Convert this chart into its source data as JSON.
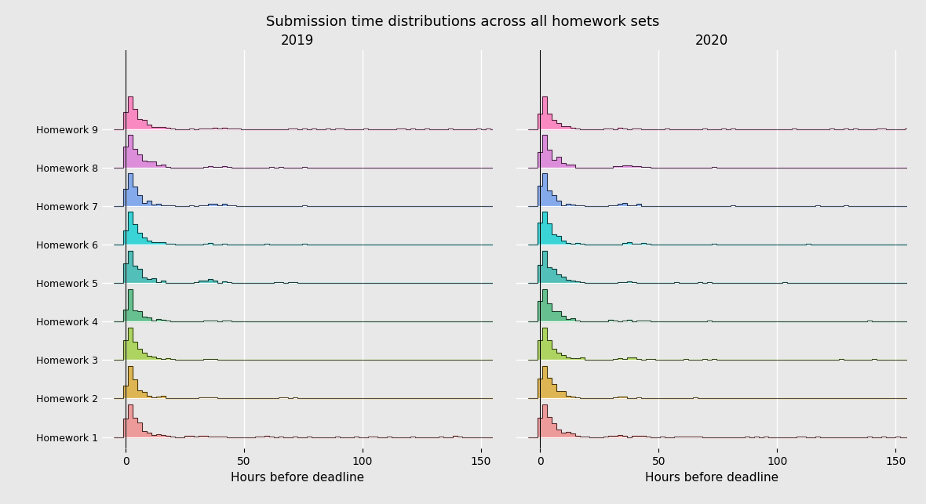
{
  "title": "Submission time distributions across all homework sets",
  "year_2019": "2019",
  "year_2020": "2020",
  "xlabel": "Hours before deadline",
  "xlim": [
    -10,
    155
  ],
  "homeworks": [
    "Homework 1",
    "Homework 2",
    "Homework 3",
    "Homework 4",
    "Homework 5",
    "Homework 6",
    "Homework 7",
    "Homework 8",
    "Homework 9"
  ],
  "colors": [
    "#F08080",
    "#DAA520",
    "#9ACD32",
    "#3CB371",
    "#20B2AA",
    "#00CED1",
    "#6495ED",
    "#DA70D6",
    "#FF69B4"
  ],
  "bg_color": "#E8E8E8",
  "grid_color": "white",
  "title_fontsize": 13,
  "label_fontsize": 11,
  "tick_fontsize": 10,
  "hw_label_fontsize": 9,
  "ridge_scale": 0.85
}
